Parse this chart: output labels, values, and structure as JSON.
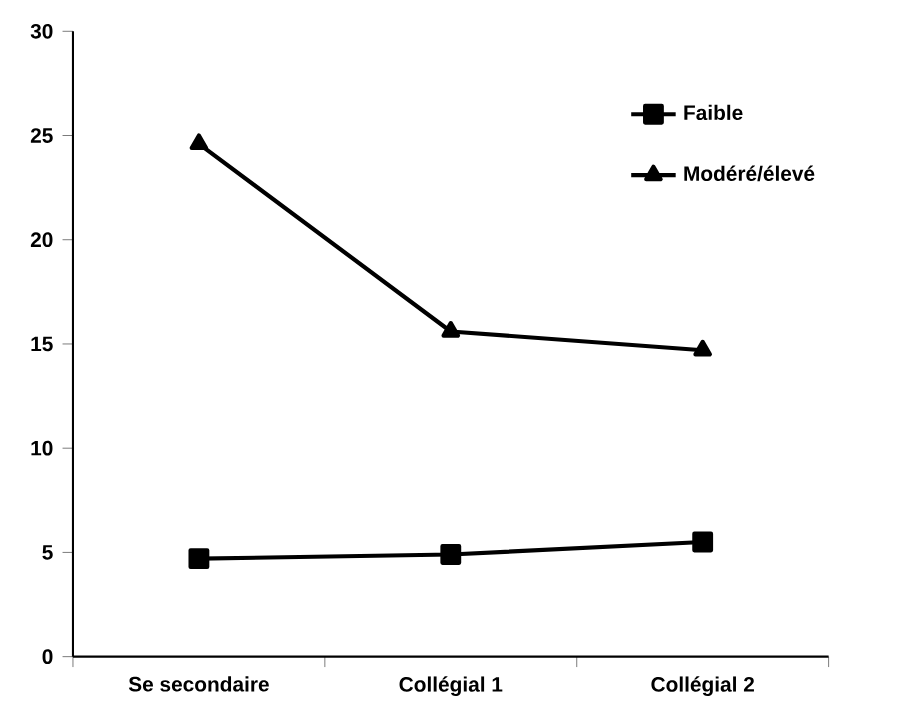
{
  "chart_data": {
    "type": "line",
    "categories": [
      "Se secondaire",
      "Collégial 1",
      "Collégial 2"
    ],
    "series": [
      {
        "name": "Faible",
        "color": "#000000",
        "marker": "square",
        "values": [
          4.7,
          4.9,
          5.5
        ]
      },
      {
        "name": "Modéré/élevé",
        "color": "#000000",
        "marker": "triangle",
        "values": [
          24.6,
          15.6,
          14.7
        ]
      }
    ],
    "ylim": [
      0,
      30
    ],
    "yticks": [
      0,
      5,
      10,
      15,
      20,
      25,
      30
    ],
    "legend": "top right",
    "grid": false,
    "line_style": "solid"
  }
}
